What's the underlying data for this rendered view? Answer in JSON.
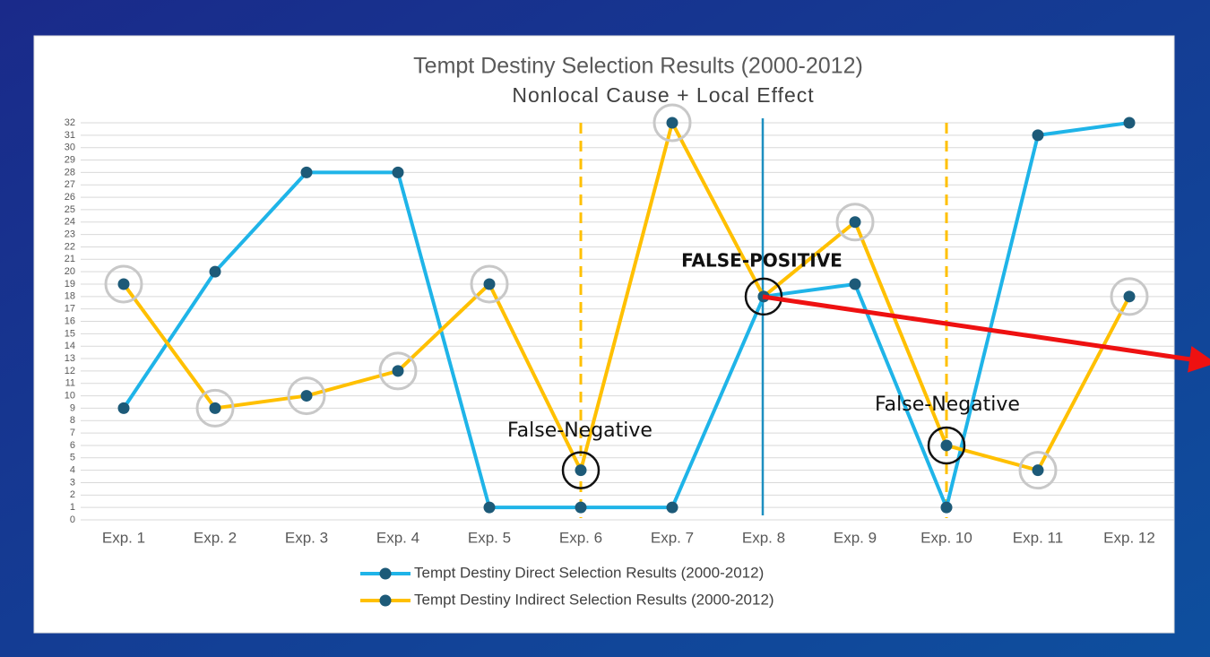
{
  "chart_data": {
    "type": "line",
    "title": "Tempt Destiny Selection Results (2000-2012)",
    "subtitle": "Nonlocal Cause + Local Effect",
    "categories": [
      "Exp. 1",
      "Exp. 2",
      "Exp. 3",
      "Exp. 4",
      "Exp. 5",
      "Exp. 6",
      "Exp. 7",
      "Exp. 8",
      "Exp. 9",
      "Exp. 10",
      "Exp. 11",
      "Exp. 12"
    ],
    "series": [
      {
        "name": "Tempt Destiny Direct Selection Results (2000-2012)",
        "color": "#1fb4e8",
        "values": [
          9,
          20,
          28,
          28,
          1,
          1,
          1,
          18,
          19,
          1,
          31,
          32
        ]
      },
      {
        "name": "Tempt Destiny Indirect Selection Results (2000-2012)",
        "color": "#ffc000",
        "values": [
          19,
          9,
          10,
          12,
          19,
          4,
          32,
          18,
          24,
          6,
          4,
          18
        ]
      }
    ],
    "marker_color": "#1d5a78",
    "ylim": [
      0,
      32
    ],
    "yticks": [
      0,
      1,
      2,
      3,
      4,
      5,
      6,
      7,
      8,
      9,
      10,
      11,
      12,
      13,
      14,
      15,
      16,
      17,
      18,
      19,
      20,
      21,
      22,
      23,
      24,
      25,
      26,
      27,
      28,
      29,
      30,
      31,
      32
    ],
    "grid": true,
    "legend": "bottom",
    "annotations": [
      "False-Negative",
      "FALSE-POSITIVE",
      "False-Negative"
    ]
  }
}
